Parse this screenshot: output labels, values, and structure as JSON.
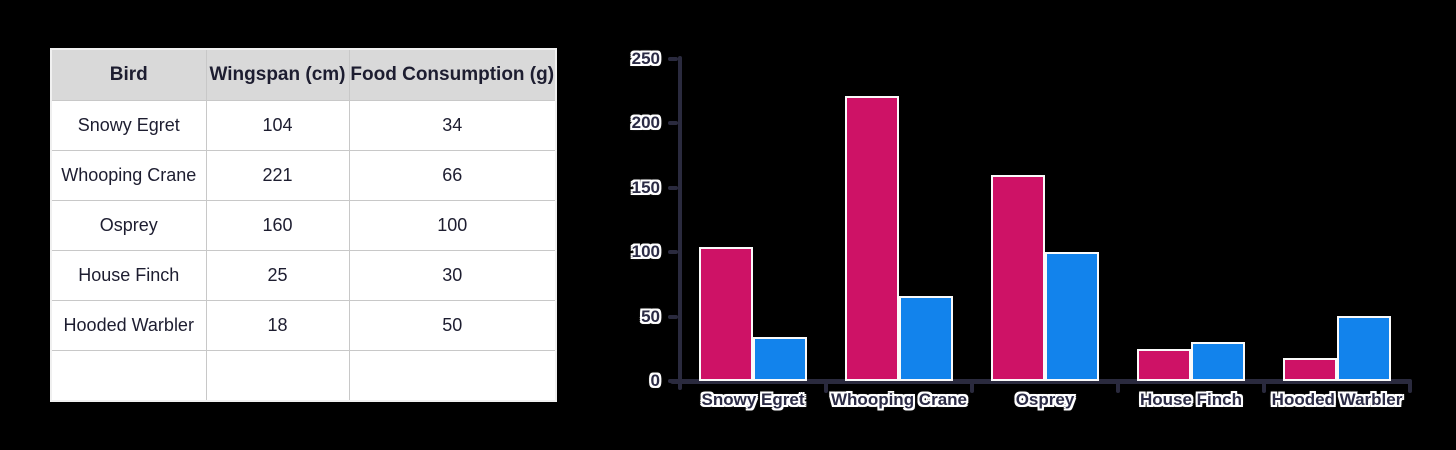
{
  "table": {
    "headers": [
      "Bird",
      "Wingspan (cm)",
      "Food Consumption (g)"
    ],
    "rows": [
      [
        "Snowy Egret",
        "104",
        "34"
      ],
      [
        "Whooping Crane",
        "221",
        "66"
      ],
      [
        "Osprey",
        "160",
        "100"
      ],
      [
        "House Finch",
        "25",
        "30"
      ],
      [
        "Hooded Warbler",
        "18",
        "50"
      ],
      [
        "",
        "",
        ""
      ]
    ]
  },
  "chart_data": {
    "type": "bar",
    "categories": [
      "Snowy Egret",
      "Whooping Crane",
      "Osprey",
      "House Finch",
      "Hooded Warbler"
    ],
    "series": [
      {
        "name": "Wingspan (cm)",
        "color": "#ce1266",
        "values": [
          104,
          221,
          160,
          25,
          18
        ]
      },
      {
        "name": "Food Consumption (g)",
        "color": "#1283ec",
        "values": [
          34,
          66,
          100,
          30,
          50
        ]
      }
    ],
    "title": "",
    "xlabel": "",
    "ylabel": "",
    "ylim": [
      0,
      250
    ],
    "yticks": [
      0,
      50,
      100,
      150,
      200,
      250
    ],
    "grid": false,
    "legend_position": "none"
  },
  "colors": {
    "background": "#000000",
    "bar_pink": "#ce1266",
    "bar_blue": "#1283ec",
    "bar_outline": "#fafafa",
    "axis": "#2a2a3e",
    "axis_label_text": "#2b2b45",
    "axis_label_halo": "#ffffff",
    "table_header_bg": "#d9d9d9",
    "table_cell_bg": "#ffffff",
    "table_border": "#c8c8c8",
    "table_text": "#1d1d30"
  }
}
